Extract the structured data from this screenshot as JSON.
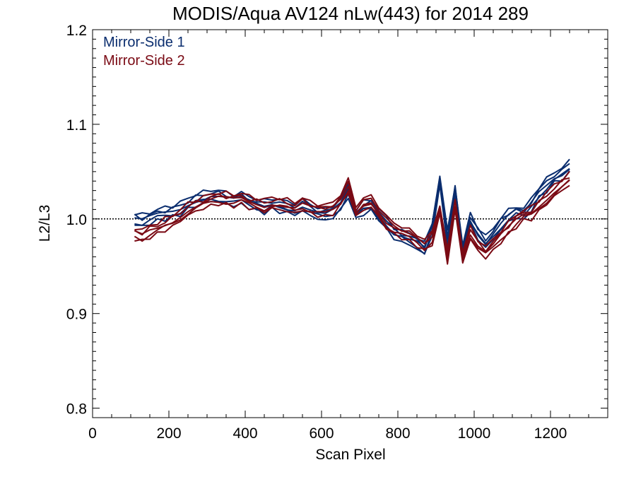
{
  "chart_data": {
    "type": "line",
    "title": "MODIS/Aqua AV124 nLw(443) for 2014 289",
    "xlabel": "Scan Pixel",
    "ylabel": "L2/L3",
    "xlim": [
      0,
      1350
    ],
    "ylim": [
      0.79,
      1.2
    ],
    "x_ticks": [
      0,
      200,
      400,
      600,
      800,
      1000,
      1200
    ],
    "x_tick_labels": [
      "0",
      "200",
      "400",
      "600",
      "800",
      "1000",
      "1200"
    ],
    "y_ticks": [
      0.8,
      0.9,
      1.0,
      1.1,
      1.2
    ],
    "y_tick_labels": [
      "0.8",
      "0.9",
      "1.0",
      "1.1",
      "1.2"
    ],
    "reference_line": {
      "y": 1.0,
      "style": "dotted"
    },
    "legend": {
      "position": "top-left"
    },
    "x": [
      110,
      130,
      150,
      170,
      190,
      210,
      230,
      250,
      270,
      290,
      310,
      330,
      350,
      370,
      390,
      410,
      430,
      450,
      470,
      490,
      510,
      530,
      550,
      570,
      590,
      610,
      630,
      650,
      670,
      690,
      710,
      730,
      750,
      770,
      790,
      810,
      830,
      850,
      870,
      890,
      910,
      930,
      950,
      970,
      990,
      1010,
      1030,
      1050,
      1070,
      1090,
      1110,
      1130,
      1150,
      1170,
      1190,
      1210,
      1230,
      1250
    ],
    "series": [
      {
        "name": "Mirror-Side 1",
        "color": "#0a2d6e",
        "values": [
          1.0,
          0.998,
          1.001,
          1.004,
          1.006,
          1.008,
          1.011,
          1.016,
          1.02,
          1.022,
          1.025,
          1.024,
          1.022,
          1.02,
          1.021,
          1.018,
          1.015,
          1.013,
          1.016,
          1.014,
          1.012,
          1.011,
          1.014,
          1.01,
          1.006,
          1.004,
          1.008,
          1.015,
          1.03,
          1.005,
          1.012,
          1.014,
          1.006,
          0.995,
          0.985,
          0.982,
          0.978,
          0.975,
          0.968,
          0.99,
          1.04,
          0.98,
          1.03,
          0.965,
          1.0,
          0.985,
          0.975,
          0.985,
          0.995,
          1.003,
          1.008,
          1.004,
          1.016,
          1.028,
          1.036,
          1.044,
          1.048,
          1.055
        ]
      },
      {
        "name": "Mirror-Side 2",
        "color": "#7a0a14",
        "values": [
          0.985,
          0.982,
          0.987,
          0.99,
          0.994,
          0.998,
          1.004,
          1.01,
          1.014,
          1.017,
          1.02,
          1.022,
          1.021,
          1.02,
          1.021,
          1.018,
          1.016,
          1.014,
          1.017,
          1.016,
          1.014,
          1.012,
          1.016,
          1.012,
          1.01,
          1.008,
          1.012,
          1.02,
          1.035,
          1.008,
          1.016,
          1.018,
          1.008,
          0.996,
          0.99,
          0.986,
          0.982,
          0.978,
          0.972,
          0.98,
          1.01,
          0.96,
          1.015,
          0.96,
          0.985,
          0.972,
          0.965,
          0.972,
          0.982,
          0.99,
          0.998,
          1.004,
          1.006,
          1.014,
          1.022,
          1.03,
          1.036,
          1.042
        ]
      }
    ]
  }
}
